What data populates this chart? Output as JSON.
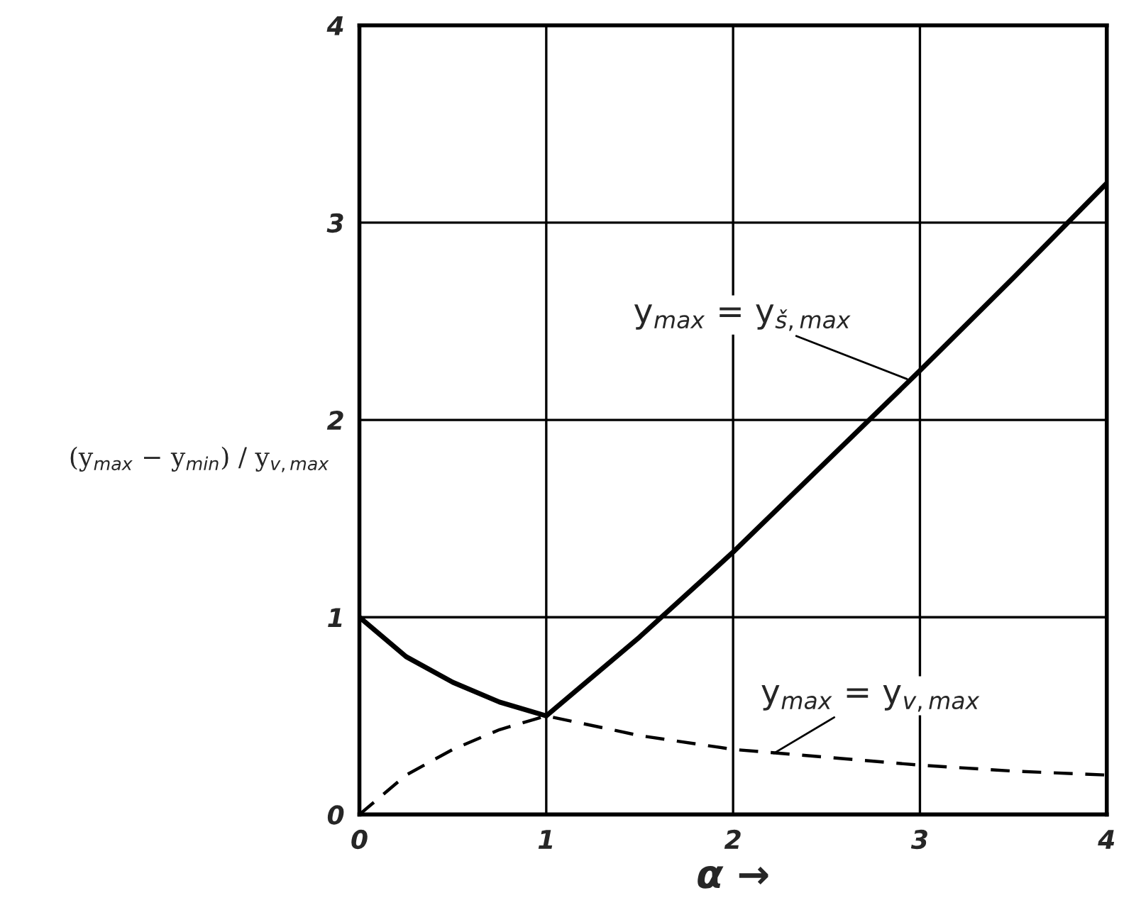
{
  "chart_data": {
    "type": "line",
    "xlabel": "α →",
    "ylabel": "(y$_{max}$ − y$_{min}$) / y$_{v,max}$",
    "xlim": [
      0,
      4
    ],
    "ylim": [
      0,
      4
    ],
    "xticks": [
      0,
      1,
      2,
      3,
      4
    ],
    "yticks": [
      0,
      1,
      2,
      3,
      4
    ],
    "grid": true,
    "series": [
      {
        "color": "#000000",
        "line_style": "solid",
        "x": [
          0,
          0.25,
          0.5,
          0.75,
          1,
          1.5,
          2,
          2.5,
          3,
          3.5,
          4
        ],
        "values": [
          1,
          0.8,
          0.67,
          0.57,
          0.5,
          0.9,
          1.33,
          1.79,
          2.25,
          2.72,
          3.2
        ]
      },
      {
        "color": "#000000",
        "line_style": "dashed",
        "x": [
          0,
          0.25,
          0.5,
          0.75,
          1,
          1.5,
          2,
          2.5,
          3,
          3.5,
          4
        ],
        "values": [
          0,
          0.2,
          0.33,
          0.43,
          0.5,
          0.4,
          0.33,
          0.29,
          0.25,
          0.22,
          0.2
        ]
      }
    ],
    "annotations": [
      {
        "text": "y$_{max}$ = y$_{š,max}$",
        "x": 2.95,
        "y": 2.2
      },
      {
        "text": "y$_{max}$ = y$_{v,max}$",
        "x": 2.2,
        "y": 0.3
      }
    ]
  }
}
